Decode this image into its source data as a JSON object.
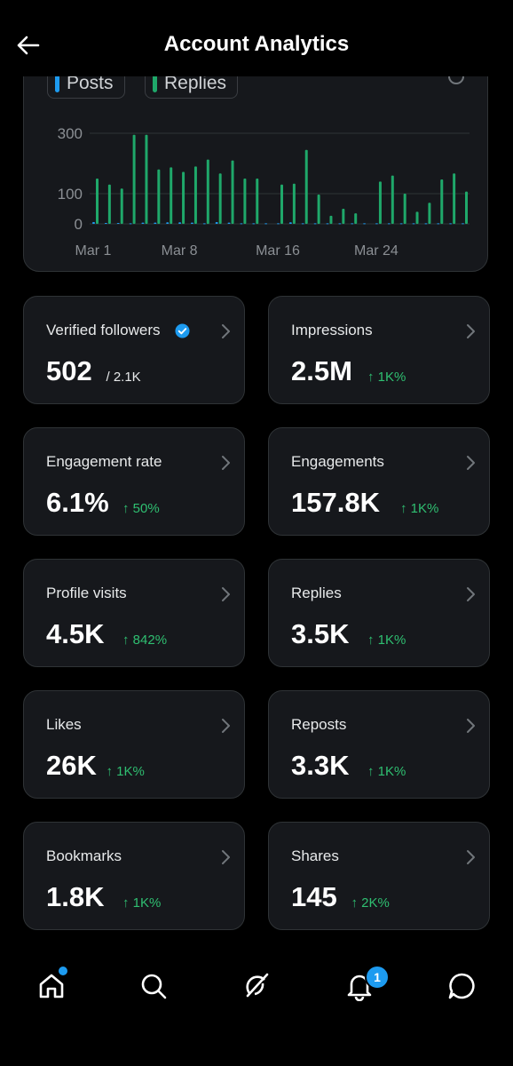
{
  "header": {
    "title": "Account Analytics"
  },
  "legend": {
    "posts": "Posts",
    "replies": "Replies"
  },
  "colors": {
    "posts": "#1d9bf0",
    "replies": "#1fa86a",
    "positive": "#2fbf71"
  },
  "chart_data": {
    "type": "bar",
    "ytick_labels": [
      "300",
      "100",
      "0"
    ],
    "yticks": [
      300,
      100,
      0
    ],
    "ylim": [
      0,
      300
    ],
    "xtick_labels": [
      "Mar 1",
      "Mar 8",
      "Mar 16",
      "Mar 24"
    ],
    "xtick_days": [
      1,
      8,
      16,
      24
    ],
    "grid": true,
    "series": [
      {
        "name": "Posts",
        "days": [
          1,
          2,
          3,
          4,
          5,
          6,
          7,
          8,
          9,
          10,
          11,
          12,
          13,
          14,
          15,
          16,
          17,
          18,
          19,
          20,
          21,
          22,
          23,
          24,
          25,
          26,
          27,
          28,
          29,
          30,
          31
        ],
        "values": [
          6,
          3,
          3,
          2,
          4,
          4,
          5,
          5,
          4,
          2,
          6,
          4,
          2,
          2,
          2,
          2,
          5,
          2,
          2,
          2,
          2,
          2,
          2,
          2,
          2,
          2,
          2,
          2,
          2,
          2,
          2
        ]
      },
      {
        "name": "Replies",
        "days": [
          1,
          2,
          3,
          4,
          5,
          6,
          7,
          8,
          9,
          10,
          11,
          12,
          13,
          14,
          15,
          16,
          17,
          18,
          19,
          20,
          21,
          22,
          23,
          24,
          25,
          26,
          27,
          28,
          29,
          30,
          31
        ],
        "values": [
          150,
          130,
          117,
          295,
          295,
          180,
          187,
          172,
          190,
          213,
          167,
          210,
          150,
          150,
          0,
          130,
          133,
          245,
          97,
          27,
          50,
          35,
          0,
          140,
          160,
          100,
          40,
          70,
          147,
          167,
          107
        ]
      }
    ]
  },
  "stats": [
    {
      "label": "Verified followers",
      "value": "502",
      "sub": "/ 2.1K",
      "change": "",
      "verified": true
    },
    {
      "label": "Impressions",
      "value": "2.5M",
      "sub": "",
      "change": "↑ 1K%"
    },
    {
      "label": "Engagement rate",
      "value": "6.1%",
      "sub": "",
      "change": "↑ 50%"
    },
    {
      "label": "Engagements",
      "value": "157.8K",
      "sub": "",
      "change": "↑ 1K%"
    },
    {
      "label": "Profile visits",
      "value": "4.5K",
      "sub": "",
      "change": "↑ 842%"
    },
    {
      "label": "Replies",
      "value": "3.5K",
      "sub": "",
      "change": "↑ 1K%"
    },
    {
      "label": "Likes",
      "value": "26K",
      "sub": "",
      "change": "↑ 1K%"
    },
    {
      "label": "Reposts",
      "value": "3.3K",
      "sub": "",
      "change": "↑ 1K%"
    },
    {
      "label": "Bookmarks",
      "value": "1.8K",
      "sub": "",
      "change": "↑ 1K%"
    },
    {
      "label": "Shares",
      "value": "145",
      "sub": "",
      "change": "↑ 2K%"
    }
  ],
  "nav": {
    "items": [
      "home-icon",
      "search-icon",
      "grok-icon",
      "bell-icon",
      "messages-icon"
    ],
    "notification_count": "1"
  }
}
